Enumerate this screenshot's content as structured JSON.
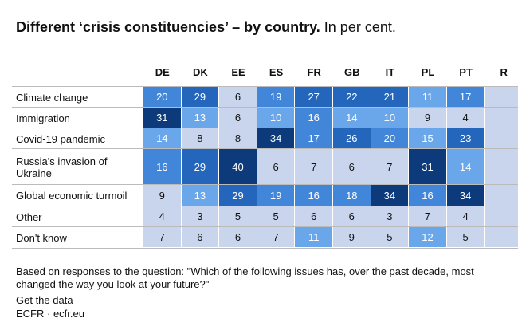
{
  "chart_data": {
    "type": "heatmap",
    "title": "Different ‘crisis constituencies’ – by country.",
    "subtitle": "In per cent.",
    "columns": [
      "DE",
      "DK",
      "EE",
      "ES",
      "FR",
      "GB",
      "IT",
      "PL",
      "PT",
      "R"
    ],
    "categories": [
      "Climate change",
      "Immigration",
      "Covid-19 pandemic",
      "Russia's invasion of Ukraine",
      "Global economic turmoil",
      "Other",
      "Don't know"
    ],
    "values": [
      [
        20,
        29,
        6,
        19,
        27,
        22,
        21,
        11,
        17,
        null
      ],
      [
        31,
        13,
        6,
        10,
        16,
        14,
        10,
        9,
        4,
        null
      ],
      [
        14,
        8,
        8,
        34,
        17,
        26,
        20,
        15,
        23,
        null
      ],
      [
        16,
        29,
        40,
        6,
        7,
        6,
        7,
        31,
        14,
        null
      ],
      [
        9,
        13,
        29,
        19,
        16,
        18,
        34,
        16,
        34,
        null
      ],
      [
        4,
        3,
        5,
        5,
        6,
        6,
        3,
        7,
        4,
        null
      ],
      [
        7,
        6,
        6,
        7,
        11,
        9,
        5,
        12,
        5,
        null
      ]
    ],
    "color_breaks": [
      10,
      16,
      21,
      30
    ],
    "colors": [
      "#c9d5ec",
      "#6aa6ea",
      "#4286da",
      "#2366bb",
      "#0c3a7a"
    ],
    "note": "Based on responses to the question: \"Which of the following issues has, over the past decade, most changed the way you look at your future?\"",
    "link": "Get the data",
    "source": "ECFR · ecfr.eu"
  }
}
